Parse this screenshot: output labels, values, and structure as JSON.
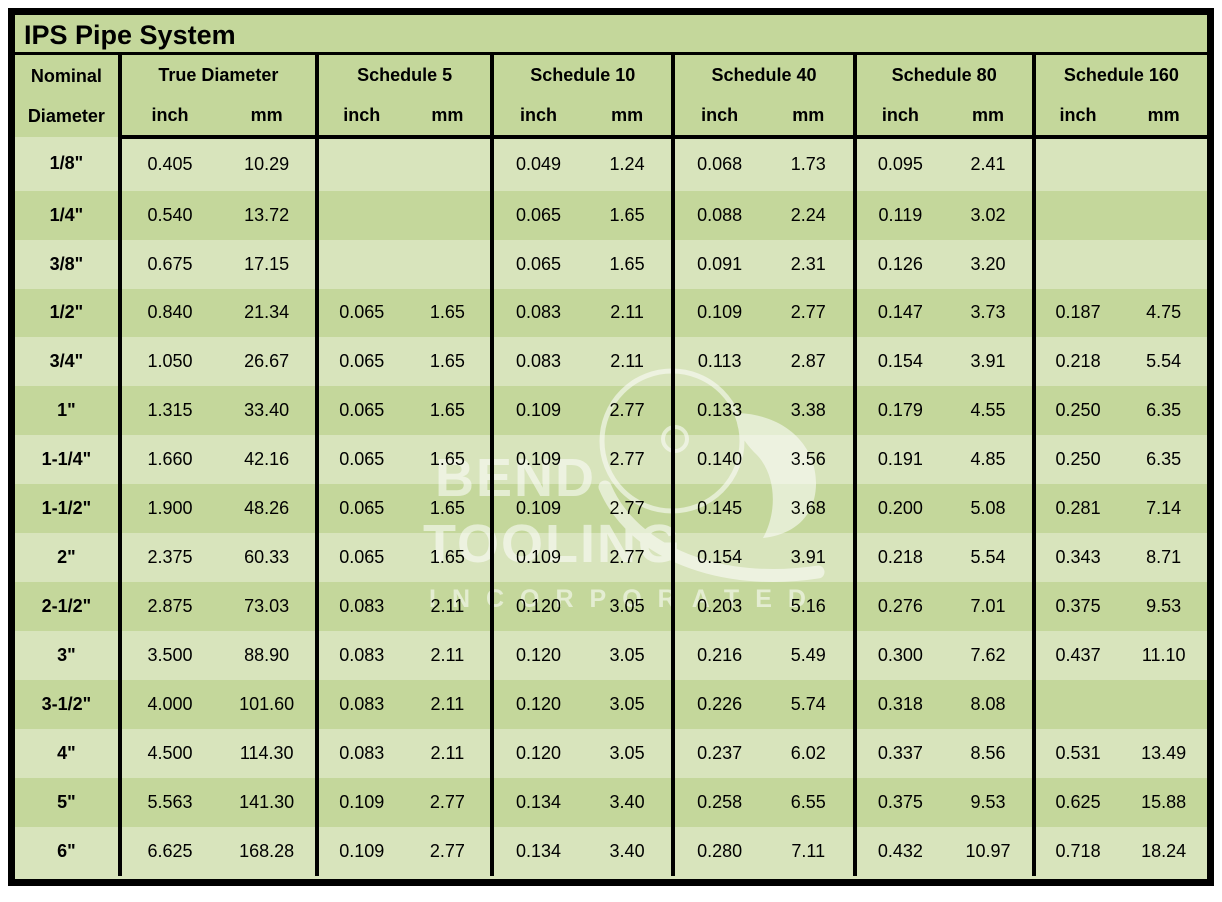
{
  "title": "IPS Pipe System",
  "columns": {
    "nominal": {
      "line1": "Nominal",
      "line2": "Diameter"
    },
    "groups": [
      {
        "label": "True Diameter",
        "sub": [
          "inch",
          "mm"
        ]
      },
      {
        "label": "Schedule 5",
        "sub": [
          "inch",
          "mm"
        ]
      },
      {
        "label": "Schedule 10",
        "sub": [
          "inch",
          "mm"
        ]
      },
      {
        "label": "Schedule 40",
        "sub": [
          "inch",
          "mm"
        ]
      },
      {
        "label": "Schedule 80",
        "sub": [
          "inch",
          "mm"
        ]
      },
      {
        "label": "Schedule 160",
        "sub": [
          "inch",
          "mm"
        ]
      }
    ]
  },
  "rows": [
    {
      "nominal": "1/8\"",
      "values": [
        "0.405",
        "10.29",
        "",
        "",
        "0.049",
        "1.24",
        "0.068",
        "1.73",
        "0.095",
        "2.41",
        "",
        ""
      ]
    },
    {
      "nominal": "1/4\"",
      "values": [
        "0.540",
        "13.72",
        "",
        "",
        "0.065",
        "1.65",
        "0.088",
        "2.24",
        "0.119",
        "3.02",
        "",
        ""
      ]
    },
    {
      "nominal": "3/8\"",
      "values": [
        "0.675",
        "17.15",
        "",
        "",
        "0.065",
        "1.65",
        "0.091",
        "2.31",
        "0.126",
        "3.20",
        "",
        ""
      ]
    },
    {
      "nominal": "1/2\"",
      "values": [
        "0.840",
        "21.34",
        "0.065",
        "1.65",
        "0.083",
        "2.11",
        "0.109",
        "2.77",
        "0.147",
        "3.73",
        "0.187",
        "4.75"
      ]
    },
    {
      "nominal": "3/4\"",
      "values": [
        "1.050",
        "26.67",
        "0.065",
        "1.65",
        "0.083",
        "2.11",
        "0.113",
        "2.87",
        "0.154",
        "3.91",
        "0.218",
        "5.54"
      ]
    },
    {
      "nominal": "1\"",
      "values": [
        "1.315",
        "33.40",
        "0.065",
        "1.65",
        "0.109",
        "2.77",
        "0.133",
        "3.38",
        "0.179",
        "4.55",
        "0.250",
        "6.35"
      ]
    },
    {
      "nominal": "1-1/4\"",
      "values": [
        "1.660",
        "42.16",
        "0.065",
        "1.65",
        "0.109",
        "2.77",
        "0.140",
        "3.56",
        "0.191",
        "4.85",
        "0.250",
        "6.35"
      ]
    },
    {
      "nominal": "1-1/2\"",
      "values": [
        "1.900",
        "48.26",
        "0.065",
        "1.65",
        "0.109",
        "2.77",
        "0.145",
        "3.68",
        "0.200",
        "5.08",
        "0.281",
        "7.14"
      ]
    },
    {
      "nominal": "2\"",
      "values": [
        "2.375",
        "60.33",
        "0.065",
        "1.65",
        "0.109",
        "2.77",
        "0.154",
        "3.91",
        "0.218",
        "5.54",
        "0.343",
        "8.71"
      ]
    },
    {
      "nominal": "2-1/2\"",
      "values": [
        "2.875",
        "73.03",
        "0.083",
        "2.11",
        "0.120",
        "3.05",
        "0.203",
        "5.16",
        "0.276",
        "7.01",
        "0.375",
        "9.53"
      ]
    },
    {
      "nominal": "3\"",
      "values": [
        "3.500",
        "88.90",
        "0.083",
        "2.11",
        "0.120",
        "3.05",
        "0.216",
        "5.49",
        "0.300",
        "7.62",
        "0.437",
        "11.10"
      ]
    },
    {
      "nominal": "3-1/2\"",
      "values": [
        "4.000",
        "101.60",
        "0.083",
        "2.11",
        "0.120",
        "3.05",
        "0.226",
        "5.74",
        "0.318",
        "8.08",
        "",
        ""
      ]
    },
    {
      "nominal": "4\"",
      "values": [
        "4.500",
        "114.30",
        "0.083",
        "2.11",
        "0.120",
        "3.05",
        "0.237",
        "6.02",
        "0.337",
        "8.56",
        "0.531",
        "13.49"
      ]
    },
    {
      "nominal": "5\"",
      "values": [
        "5.563",
        "141.30",
        "0.109",
        "2.77",
        "0.134",
        "3.40",
        "0.258",
        "6.55",
        "0.375",
        "9.53",
        "0.625",
        "15.88"
      ]
    },
    {
      "nominal": "6\"",
      "values": [
        "6.625",
        "168.28",
        "0.109",
        "2.77",
        "0.134",
        "3.40",
        "0.280",
        "7.11",
        "0.432",
        "10.97",
        "0.718",
        "18.24"
      ]
    }
  ],
  "watermark": {
    "line1": "BEND",
    "line2": "TOOLING",
    "line3": "INCORPORATED"
  },
  "colors": {
    "header_bg": "#C4D79B",
    "row_light": "#D8E4BC",
    "row_dark": "#C4D79B",
    "border": "#000000",
    "text": "#000000"
  }
}
